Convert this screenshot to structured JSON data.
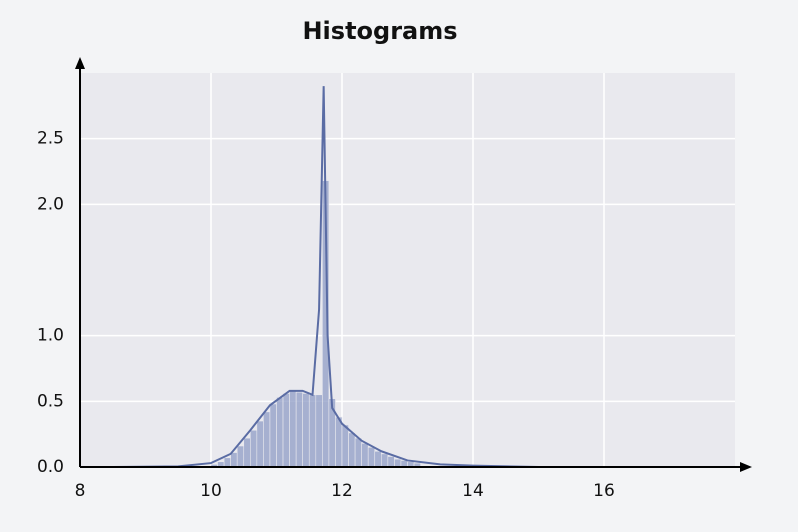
{
  "chart_data": {
    "type": "histogram",
    "title": "Histograms",
    "bins": [
      10.0,
      10.1,
      10.2,
      10.3,
      10.4,
      10.5,
      10.6,
      10.7,
      10.8,
      10.9,
      11.0,
      11.1,
      11.2,
      11.3,
      11.4,
      11.5,
      11.6,
      11.7,
      11.8,
      11.9,
      12.0,
      12.1,
      12.2,
      12.3,
      12.4,
      12.5,
      12.6,
      12.7,
      12.8,
      12.9,
      13.0,
      13.1,
      13.2
    ],
    "values": [
      0.02,
      0.04,
      0.07,
      0.11,
      0.16,
      0.22,
      0.28,
      0.35,
      0.42,
      0.48,
      0.53,
      0.56,
      0.58,
      0.57,
      0.56,
      0.55,
      0.55,
      2.18,
      0.52,
      0.38,
      0.32,
      0.26,
      0.22,
      0.18,
      0.15,
      0.12,
      0.1,
      0.08,
      0.06,
      0.05,
      0.04,
      0.03
    ],
    "color": "#8f9cc6",
    "kde": {
      "color": "#5a6ca4",
      "x": [
        8.5,
        9.5,
        10.0,
        10.3,
        10.6,
        10.9,
        11.2,
        11.4,
        11.55,
        11.65,
        11.72,
        11.78,
        11.85,
        12.0,
        12.3,
        12.6,
        13.0,
        13.5,
        14,
        15,
        16,
        17.1
      ],
      "values": [
        0,
        0.005,
        0.03,
        0.1,
        0.28,
        0.47,
        0.58,
        0.58,
        0.55,
        1.2,
        2.9,
        1.0,
        0.45,
        0.33,
        0.2,
        0.12,
        0.05,
        0.02,
        0.01,
        0,
        0,
        0
      ]
    },
    "xlim": [
      8,
      18
    ],
    "xticks": [
      8,
      10,
      12,
      14,
      16
    ],
    "ylim": [
      0,
      3
    ],
    "yticks": [
      {
        "value": 0,
        "label": "0.0"
      },
      0.5,
      {
        "value": 1,
        "label": "1.0"
      },
      {
        "value": 2,
        "label": "2.0"
      },
      2.5
    ],
    "grid": true
  }
}
